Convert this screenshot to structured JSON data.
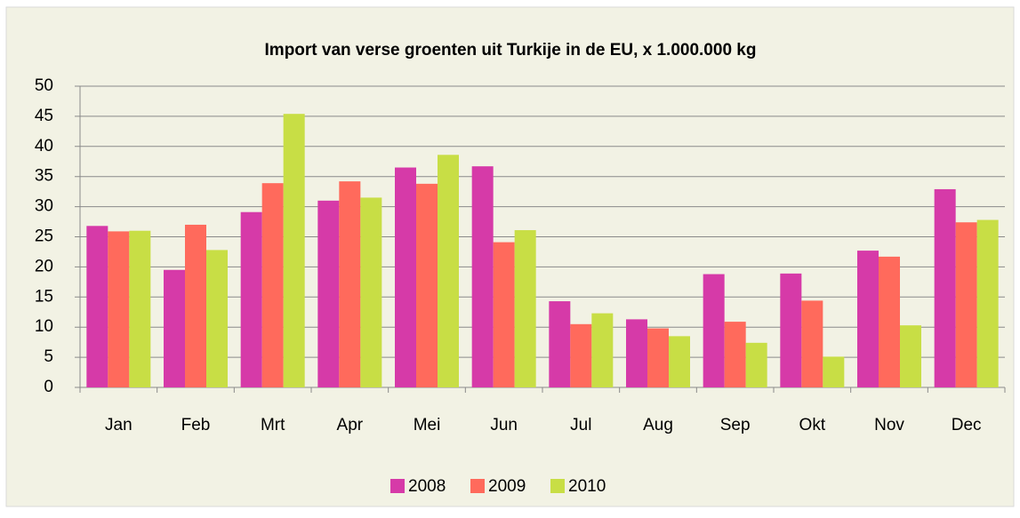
{
  "chart_data": {
    "type": "bar",
    "title": "Import van verse groenten uit Turkije in de EU, x 1.000.000 kg",
    "categories": [
      "Jan",
      "Feb",
      "Mrt",
      "Apr",
      "Mei",
      "Jun",
      "Jul",
      "Aug",
      "Sep",
      "Okt",
      "Nov",
      "Dec"
    ],
    "series": [
      {
        "name": "2008",
        "color": "#d63aa8",
        "values": [
          26.8,
          19.5,
          29.1,
          31,
          36.5,
          36.7,
          14.3,
          11.3,
          18.8,
          18.9,
          22.7,
          32.9
        ]
      },
      {
        "name": "2009",
        "color": "#ff6a5c",
        "values": [
          25.9,
          27,
          33.9,
          34.2,
          33.8,
          24.1,
          10.5,
          9.8,
          10.9,
          14.4,
          21.7,
          27.4
        ]
      },
      {
        "name": "2010",
        "color": "#c8de45",
        "values": [
          26,
          22.8,
          45.4,
          31.5,
          38.6,
          26.1,
          12.3,
          8.5,
          7.4,
          5.1,
          10.3,
          27.8
        ]
      }
    ],
    "ylim": [
      0,
      50
    ],
    "yticks": [
      0,
      5,
      10,
      15,
      20,
      25,
      30,
      35,
      40,
      45,
      50
    ],
    "grid": true,
    "legend": "bottom"
  }
}
